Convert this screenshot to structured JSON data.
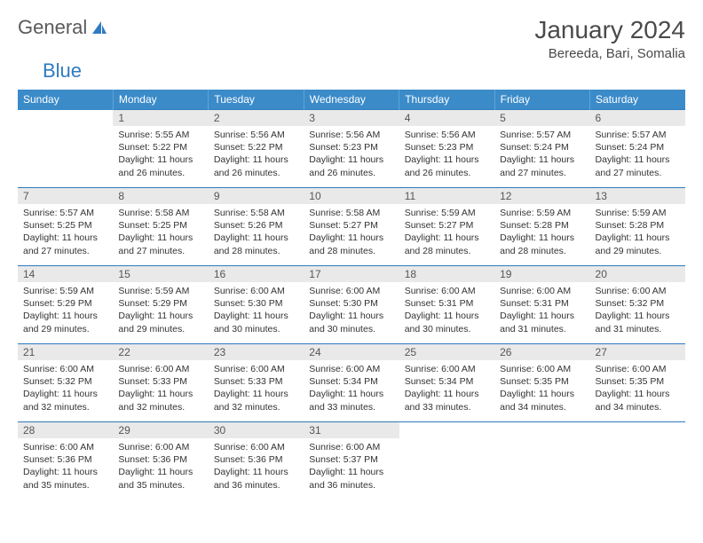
{
  "logo": {
    "text1": "General",
    "text2": "Blue",
    "sail_color": "#2f7bbf"
  },
  "title": "January 2024",
  "location": "Bereeda, Bari, Somalia",
  "colors": {
    "header_bg": "#3b8bc9",
    "header_text": "#ffffff",
    "row_divider": "#2f7bbf",
    "daynum_bg": "#e9e9e9",
    "text": "#333333"
  },
  "weekdays": [
    "Sunday",
    "Monday",
    "Tuesday",
    "Wednesday",
    "Thursday",
    "Friday",
    "Saturday"
  ],
  "labels": {
    "sunrise": "Sunrise:",
    "sunset": "Sunset:",
    "daylight": "Daylight:"
  },
  "weeks": [
    [
      null,
      {
        "day": "1",
        "sunrise": "5:55 AM",
        "sunset": "5:22 PM",
        "daylight": "11 hours and 26 minutes."
      },
      {
        "day": "2",
        "sunrise": "5:56 AM",
        "sunset": "5:22 PM",
        "daylight": "11 hours and 26 minutes."
      },
      {
        "day": "3",
        "sunrise": "5:56 AM",
        "sunset": "5:23 PM",
        "daylight": "11 hours and 26 minutes."
      },
      {
        "day": "4",
        "sunrise": "5:56 AM",
        "sunset": "5:23 PM",
        "daylight": "11 hours and 26 minutes."
      },
      {
        "day": "5",
        "sunrise": "5:57 AM",
        "sunset": "5:24 PM",
        "daylight": "11 hours and 27 minutes."
      },
      {
        "day": "6",
        "sunrise": "5:57 AM",
        "sunset": "5:24 PM",
        "daylight": "11 hours and 27 minutes."
      }
    ],
    [
      {
        "day": "7",
        "sunrise": "5:57 AM",
        "sunset": "5:25 PM",
        "daylight": "11 hours and 27 minutes."
      },
      {
        "day": "8",
        "sunrise": "5:58 AM",
        "sunset": "5:25 PM",
        "daylight": "11 hours and 27 minutes."
      },
      {
        "day": "9",
        "sunrise": "5:58 AM",
        "sunset": "5:26 PM",
        "daylight": "11 hours and 28 minutes."
      },
      {
        "day": "10",
        "sunrise": "5:58 AM",
        "sunset": "5:27 PM",
        "daylight": "11 hours and 28 minutes."
      },
      {
        "day": "11",
        "sunrise": "5:59 AM",
        "sunset": "5:27 PM",
        "daylight": "11 hours and 28 minutes."
      },
      {
        "day": "12",
        "sunrise": "5:59 AM",
        "sunset": "5:28 PM",
        "daylight": "11 hours and 28 minutes."
      },
      {
        "day": "13",
        "sunrise": "5:59 AM",
        "sunset": "5:28 PM",
        "daylight": "11 hours and 29 minutes."
      }
    ],
    [
      {
        "day": "14",
        "sunrise": "5:59 AM",
        "sunset": "5:29 PM",
        "daylight": "11 hours and 29 minutes."
      },
      {
        "day": "15",
        "sunrise": "5:59 AM",
        "sunset": "5:29 PM",
        "daylight": "11 hours and 29 minutes."
      },
      {
        "day": "16",
        "sunrise": "6:00 AM",
        "sunset": "5:30 PM",
        "daylight": "11 hours and 30 minutes."
      },
      {
        "day": "17",
        "sunrise": "6:00 AM",
        "sunset": "5:30 PM",
        "daylight": "11 hours and 30 minutes."
      },
      {
        "day": "18",
        "sunrise": "6:00 AM",
        "sunset": "5:31 PM",
        "daylight": "11 hours and 30 minutes."
      },
      {
        "day": "19",
        "sunrise": "6:00 AM",
        "sunset": "5:31 PM",
        "daylight": "11 hours and 31 minutes."
      },
      {
        "day": "20",
        "sunrise": "6:00 AM",
        "sunset": "5:32 PM",
        "daylight": "11 hours and 31 minutes."
      }
    ],
    [
      {
        "day": "21",
        "sunrise": "6:00 AM",
        "sunset": "5:32 PM",
        "daylight": "11 hours and 32 minutes."
      },
      {
        "day": "22",
        "sunrise": "6:00 AM",
        "sunset": "5:33 PM",
        "daylight": "11 hours and 32 minutes."
      },
      {
        "day": "23",
        "sunrise": "6:00 AM",
        "sunset": "5:33 PM",
        "daylight": "11 hours and 32 minutes."
      },
      {
        "day": "24",
        "sunrise": "6:00 AM",
        "sunset": "5:34 PM",
        "daylight": "11 hours and 33 minutes."
      },
      {
        "day": "25",
        "sunrise": "6:00 AM",
        "sunset": "5:34 PM",
        "daylight": "11 hours and 33 minutes."
      },
      {
        "day": "26",
        "sunrise": "6:00 AM",
        "sunset": "5:35 PM",
        "daylight": "11 hours and 34 minutes."
      },
      {
        "day": "27",
        "sunrise": "6:00 AM",
        "sunset": "5:35 PM",
        "daylight": "11 hours and 34 minutes."
      }
    ],
    [
      {
        "day": "28",
        "sunrise": "6:00 AM",
        "sunset": "5:36 PM",
        "daylight": "11 hours and 35 minutes."
      },
      {
        "day": "29",
        "sunrise": "6:00 AM",
        "sunset": "5:36 PM",
        "daylight": "11 hours and 35 minutes."
      },
      {
        "day": "30",
        "sunrise": "6:00 AM",
        "sunset": "5:36 PM",
        "daylight": "11 hours and 36 minutes."
      },
      {
        "day": "31",
        "sunrise": "6:00 AM",
        "sunset": "5:37 PM",
        "daylight": "11 hours and 36 minutes."
      },
      null,
      null,
      null
    ]
  ]
}
